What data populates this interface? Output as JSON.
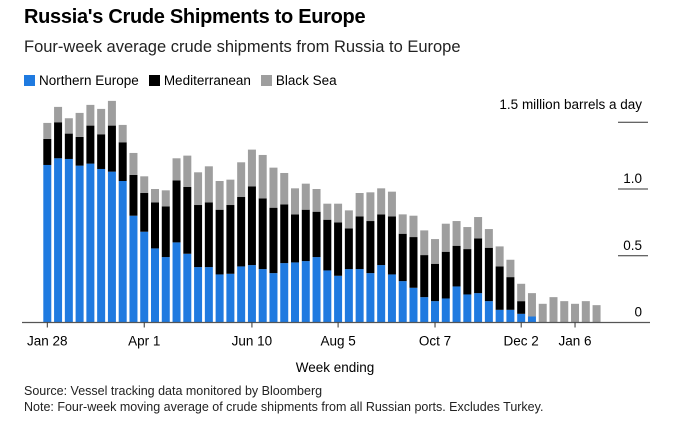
{
  "chart_data": {
    "type": "bar",
    "stacked": true,
    "title": "Russia's Crude Shipments to Europe",
    "subtitle": "Four-week average crude shipments from Russia to Europe",
    "xlabel": "Week ending",
    "ylabel": "",
    "unit_label": "1.5 million barrels a day",
    "ylim": [
      0,
      1.5
    ],
    "yticks": [
      "0",
      "0.5",
      "1.0"
    ],
    "grid": true,
    "legend": "top-left",
    "xtick_labels": [
      {
        "category": "Jan 28",
        "label": "Jan 28"
      },
      {
        "category": "Apr 1",
        "label": "Apr 1"
      },
      {
        "category": "Jun 10",
        "label": "Jun 10"
      },
      {
        "category": "Aug 5",
        "label": "Aug 5"
      },
      {
        "category": "Oct 7",
        "label": "Oct 7"
      },
      {
        "category": "Dec 2",
        "label": "Dec 2"
      },
      {
        "category": "Jan 6",
        "label": "Jan 6"
      }
    ],
    "categories": [
      "Jan 28",
      "Feb 4",
      "Feb 11",
      "Feb 18",
      "Feb 25",
      "Mar 4",
      "Mar 11",
      "Mar 18",
      "Mar 25",
      "Apr 1",
      "Apr 8",
      "Apr 15",
      "Apr 22",
      "Apr 29",
      "May 6",
      "May 13",
      "May 20",
      "May 27",
      "Jun 3",
      "Jun 10",
      "Jun 17",
      "Jun 24",
      "Jul 1",
      "Jul 8",
      "Jul 15",
      "Jul 22",
      "Jul 29",
      "Aug 5",
      "Aug 12",
      "Aug 19",
      "Aug 26",
      "Sep 2",
      "Sep 9",
      "Sep 16",
      "Sep 23",
      "Sep 30",
      "Oct 7",
      "Oct 14",
      "Oct 21",
      "Oct 28",
      "Nov 4",
      "Nov 11",
      "Nov 18",
      "Nov 25",
      "Dec 2",
      "Dec 9",
      "Dec 16",
      "Dec 23",
      "Dec 30",
      "Jan 6",
      "Jan 13",
      "Jan 20"
    ],
    "series": [
      {
        "name": "Northern Europe",
        "color": "#1f7ae0",
        "values": [
          1.18,
          1.23,
          1.225,
          1.175,
          1.19,
          1.15,
          1.13,
          1.06,
          0.8,
          0.68,
          0.555,
          0.49,
          0.6,
          0.515,
          0.415,
          0.415,
          0.36,
          0.365,
          0.42,
          0.43,
          0.4,
          0.37,
          0.445,
          0.45,
          0.46,
          0.49,
          0.39,
          0.35,
          0.4,
          0.4,
          0.37,
          0.43,
          0.36,
          0.31,
          0.26,
          0.19,
          0.16,
          0.18,
          0.27,
          0.21,
          0.22,
          0.16,
          0.095,
          0.095,
          0.065,
          0.045,
          0,
          0,
          0,
          0,
          0,
          0
        ]
      },
      {
        "name": "Mediterranean",
        "color": "#000000",
        "values": [
          0.195,
          0.27,
          0.19,
          0.215,
          0.285,
          0.26,
          0.345,
          0.29,
          0.305,
          0.29,
          0.345,
          0.38,
          0.465,
          0.5,
          0.465,
          0.485,
          0.485,
          0.515,
          0.52,
          0.59,
          0.53,
          0.49,
          0.44,
          0.36,
          0.385,
          0.34,
          0.38,
          0.4,
          0.305,
          0.395,
          0.39,
          0.38,
          0.435,
          0.355,
          0.38,
          0.315,
          0.28,
          0.35,
          0.305,
          0.34,
          0.41,
          0.4,
          0.325,
          0.245,
          0.095,
          0,
          0,
          0,
          0,
          0,
          0,
          0
        ]
      },
      {
        "name": "Black Sea",
        "color": "#9e9e9e",
        "values": [
          0.12,
          0.115,
          0.115,
          0.18,
          0.155,
          0.19,
          0.185,
          0.13,
          0.165,
          0.125,
          0.1,
          0.12,
          0.165,
          0.235,
          0.245,
          0.27,
          0.215,
          0.19,
          0.26,
          0.275,
          0.325,
          0.3,
          0.235,
          0.195,
          0.195,
          0.17,
          0.12,
          0.14,
          0.135,
          0.175,
          0.215,
          0.195,
          0.185,
          0.145,
          0.16,
          0.185,
          0.185,
          0.21,
          0.185,
          0.165,
          0.16,
          0.14,
          0.15,
          0.13,
          0.13,
          0.175,
          0.14,
          0.19,
          0.16,
          0.14,
          0.16,
          0.13
        ]
      }
    ]
  },
  "footer": {
    "source": "Source: Vessel tracking data monitored by Bloomberg",
    "note": "Note: Four-week moving average of crude shipments from all Russian ports. Excludes Turkey."
  }
}
